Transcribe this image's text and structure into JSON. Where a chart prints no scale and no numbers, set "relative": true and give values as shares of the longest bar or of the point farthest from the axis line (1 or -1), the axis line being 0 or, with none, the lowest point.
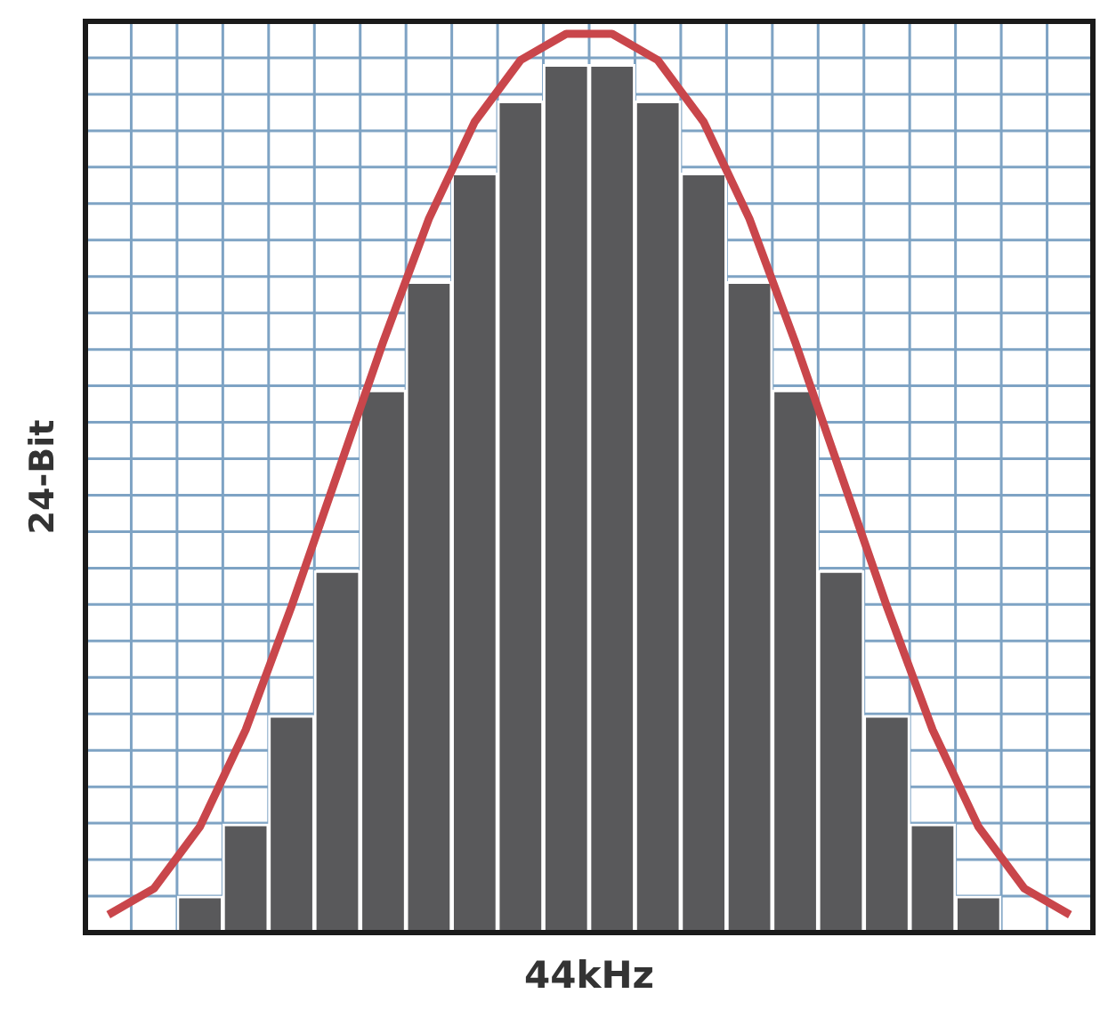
{
  "chart_data": [
    {
      "type": "bar",
      "xlabel": "44kHz",
      "ylabel": "24-Bit",
      "relative": true,
      "grid": true,
      "legend": false,
      "categories": [
        null,
        null,
        null,
        null,
        null,
        null,
        null,
        null,
        null,
        null,
        null,
        null,
        null,
        null,
        null,
        null,
        null,
        null
      ],
      "series": [
        {
          "color": "#59595b",
          "values": [
            0.042,
            0.125,
            0.25,
            0.417,
            0.625,
            0.75,
            0.875,
            0.958,
            1,
            1,
            0.958,
            0.875,
            0.75,
            0.625,
            0.417,
            0.25,
            0.125,
            0.042
          ]
        }
      ]
    },
    {
      "type": "line",
      "relative": true,
      "legend": false,
      "marker": "none",
      "categories": [
        null,
        null,
        null,
        null,
        null,
        null,
        null,
        null,
        null,
        null,
        null,
        null,
        null,
        null,
        null,
        null,
        null,
        null,
        null,
        null,
        null,
        null
      ],
      "series": [
        {
          "color": "#c9464b",
          "values": [
            0,
            0.03,
            0.1,
            0.21,
            0.35,
            0.5,
            0.65,
            0.79,
            0.9,
            0.97,
            1,
            1,
            0.97,
            0.9,
            0.79,
            0.65,
            0.5,
            0.35,
            0.21,
            0.1,
            0.03,
            0
          ]
        }
      ]
    }
  ]
}
